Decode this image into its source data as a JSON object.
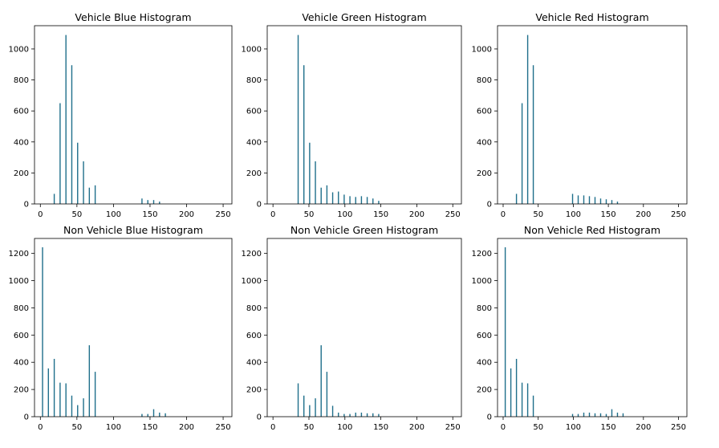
{
  "bar_color": "#1f6f8b",
  "chart_data": [
    {
      "type": "bar",
      "title": "Vehicle Blue Histogram",
      "xlim": [
        -8,
        262
      ],
      "ylim": [
        0,
        1150
      ],
      "xticks": [
        0,
        50,
        100,
        150,
        200,
        250
      ],
      "yticks": [
        0,
        200,
        400,
        600,
        800,
        1000
      ],
      "x": [
        19,
        27,
        35,
        43,
        51,
        59,
        67,
        75,
        139,
        147,
        155,
        163
      ],
      "values": [
        65,
        650,
        1090,
        895,
        395,
        275,
        105,
        120,
        35,
        25,
        25,
        15
      ]
    },
    {
      "type": "bar",
      "title": "Vehicle Green Histogram",
      "xlim": [
        -8,
        262
      ],
      "ylim": [
        0,
        1150
      ],
      "xticks": [
        0,
        50,
        100,
        150,
        200,
        250
      ],
      "yticks": [
        0,
        200,
        400,
        600,
        800,
        1000
      ],
      "x": [
        35,
        43,
        51,
        59,
        67,
        75,
        83,
        91,
        99,
        107,
        115,
        123,
        131,
        139,
        147
      ],
      "values": [
        1090,
        895,
        395,
        275,
        105,
        120,
        75,
        80,
        60,
        50,
        45,
        50,
        45,
        35,
        20
      ]
    },
    {
      "type": "bar",
      "title": "Vehicle Red Histogram",
      "xlim": [
        -8,
        262
      ],
      "ylim": [
        0,
        1150
      ],
      "xticks": [
        0,
        50,
        100,
        150,
        200,
        250
      ],
      "yticks": [
        0,
        200,
        400,
        600,
        800,
        1000
      ],
      "x": [
        19,
        27,
        35,
        43,
        99,
        107,
        115,
        123,
        131,
        139,
        147,
        155,
        163
      ],
      "values": [
        65,
        650,
        1090,
        895,
        65,
        55,
        55,
        50,
        45,
        35,
        30,
        25,
        15
      ]
    },
    {
      "type": "bar",
      "title": "Non Vehicle Blue Histogram",
      "xlim": [
        -8,
        262
      ],
      "ylim": [
        0,
        1310
      ],
      "xticks": [
        0,
        50,
        100,
        150,
        200,
        250
      ],
      "yticks": [
        0,
        200,
        400,
        600,
        800,
        1000,
        1200
      ],
      "x": [
        3,
        11,
        19,
        27,
        35,
        43,
        51,
        59,
        67,
        75,
        139,
        147,
        155,
        163,
        171
      ],
      "values": [
        1245,
        355,
        425,
        250,
        245,
        155,
        85,
        135,
        525,
        330,
        20,
        20,
        55,
        30,
        25
      ]
    },
    {
      "type": "bar",
      "title": "Non Vehicle Green Histogram",
      "xlim": [
        -8,
        262
      ],
      "ylim": [
        0,
        1310
      ],
      "xticks": [
        0,
        50,
        100,
        150,
        200,
        250
      ],
      "yticks": [
        0,
        200,
        400,
        600,
        800,
        1000,
        1200
      ],
      "x": [
        35,
        43,
        51,
        59,
        67,
        75,
        83,
        91,
        99,
        107,
        115,
        123,
        131,
        139,
        147
      ],
      "values": [
        245,
        155,
        85,
        135,
        525,
        330,
        80,
        30,
        20,
        20,
        30,
        30,
        25,
        25,
        20
      ]
    },
    {
      "type": "bar",
      "title": "Non Vehicle Red Histogram",
      "xlim": [
        -8,
        262
      ],
      "ylim": [
        0,
        1310
      ],
      "xticks": [
        0,
        50,
        100,
        150,
        200,
        250
      ],
      "yticks": [
        0,
        200,
        400,
        600,
        800,
        1000,
        1200
      ],
      "x": [
        3,
        11,
        19,
        27,
        35,
        43,
        99,
        107,
        115,
        123,
        131,
        139,
        147,
        155,
        163,
        171
      ],
      "values": [
        1245,
        355,
        425,
        250,
        245,
        155,
        20,
        20,
        30,
        30,
        25,
        25,
        20,
        55,
        30,
        25
      ]
    }
  ]
}
